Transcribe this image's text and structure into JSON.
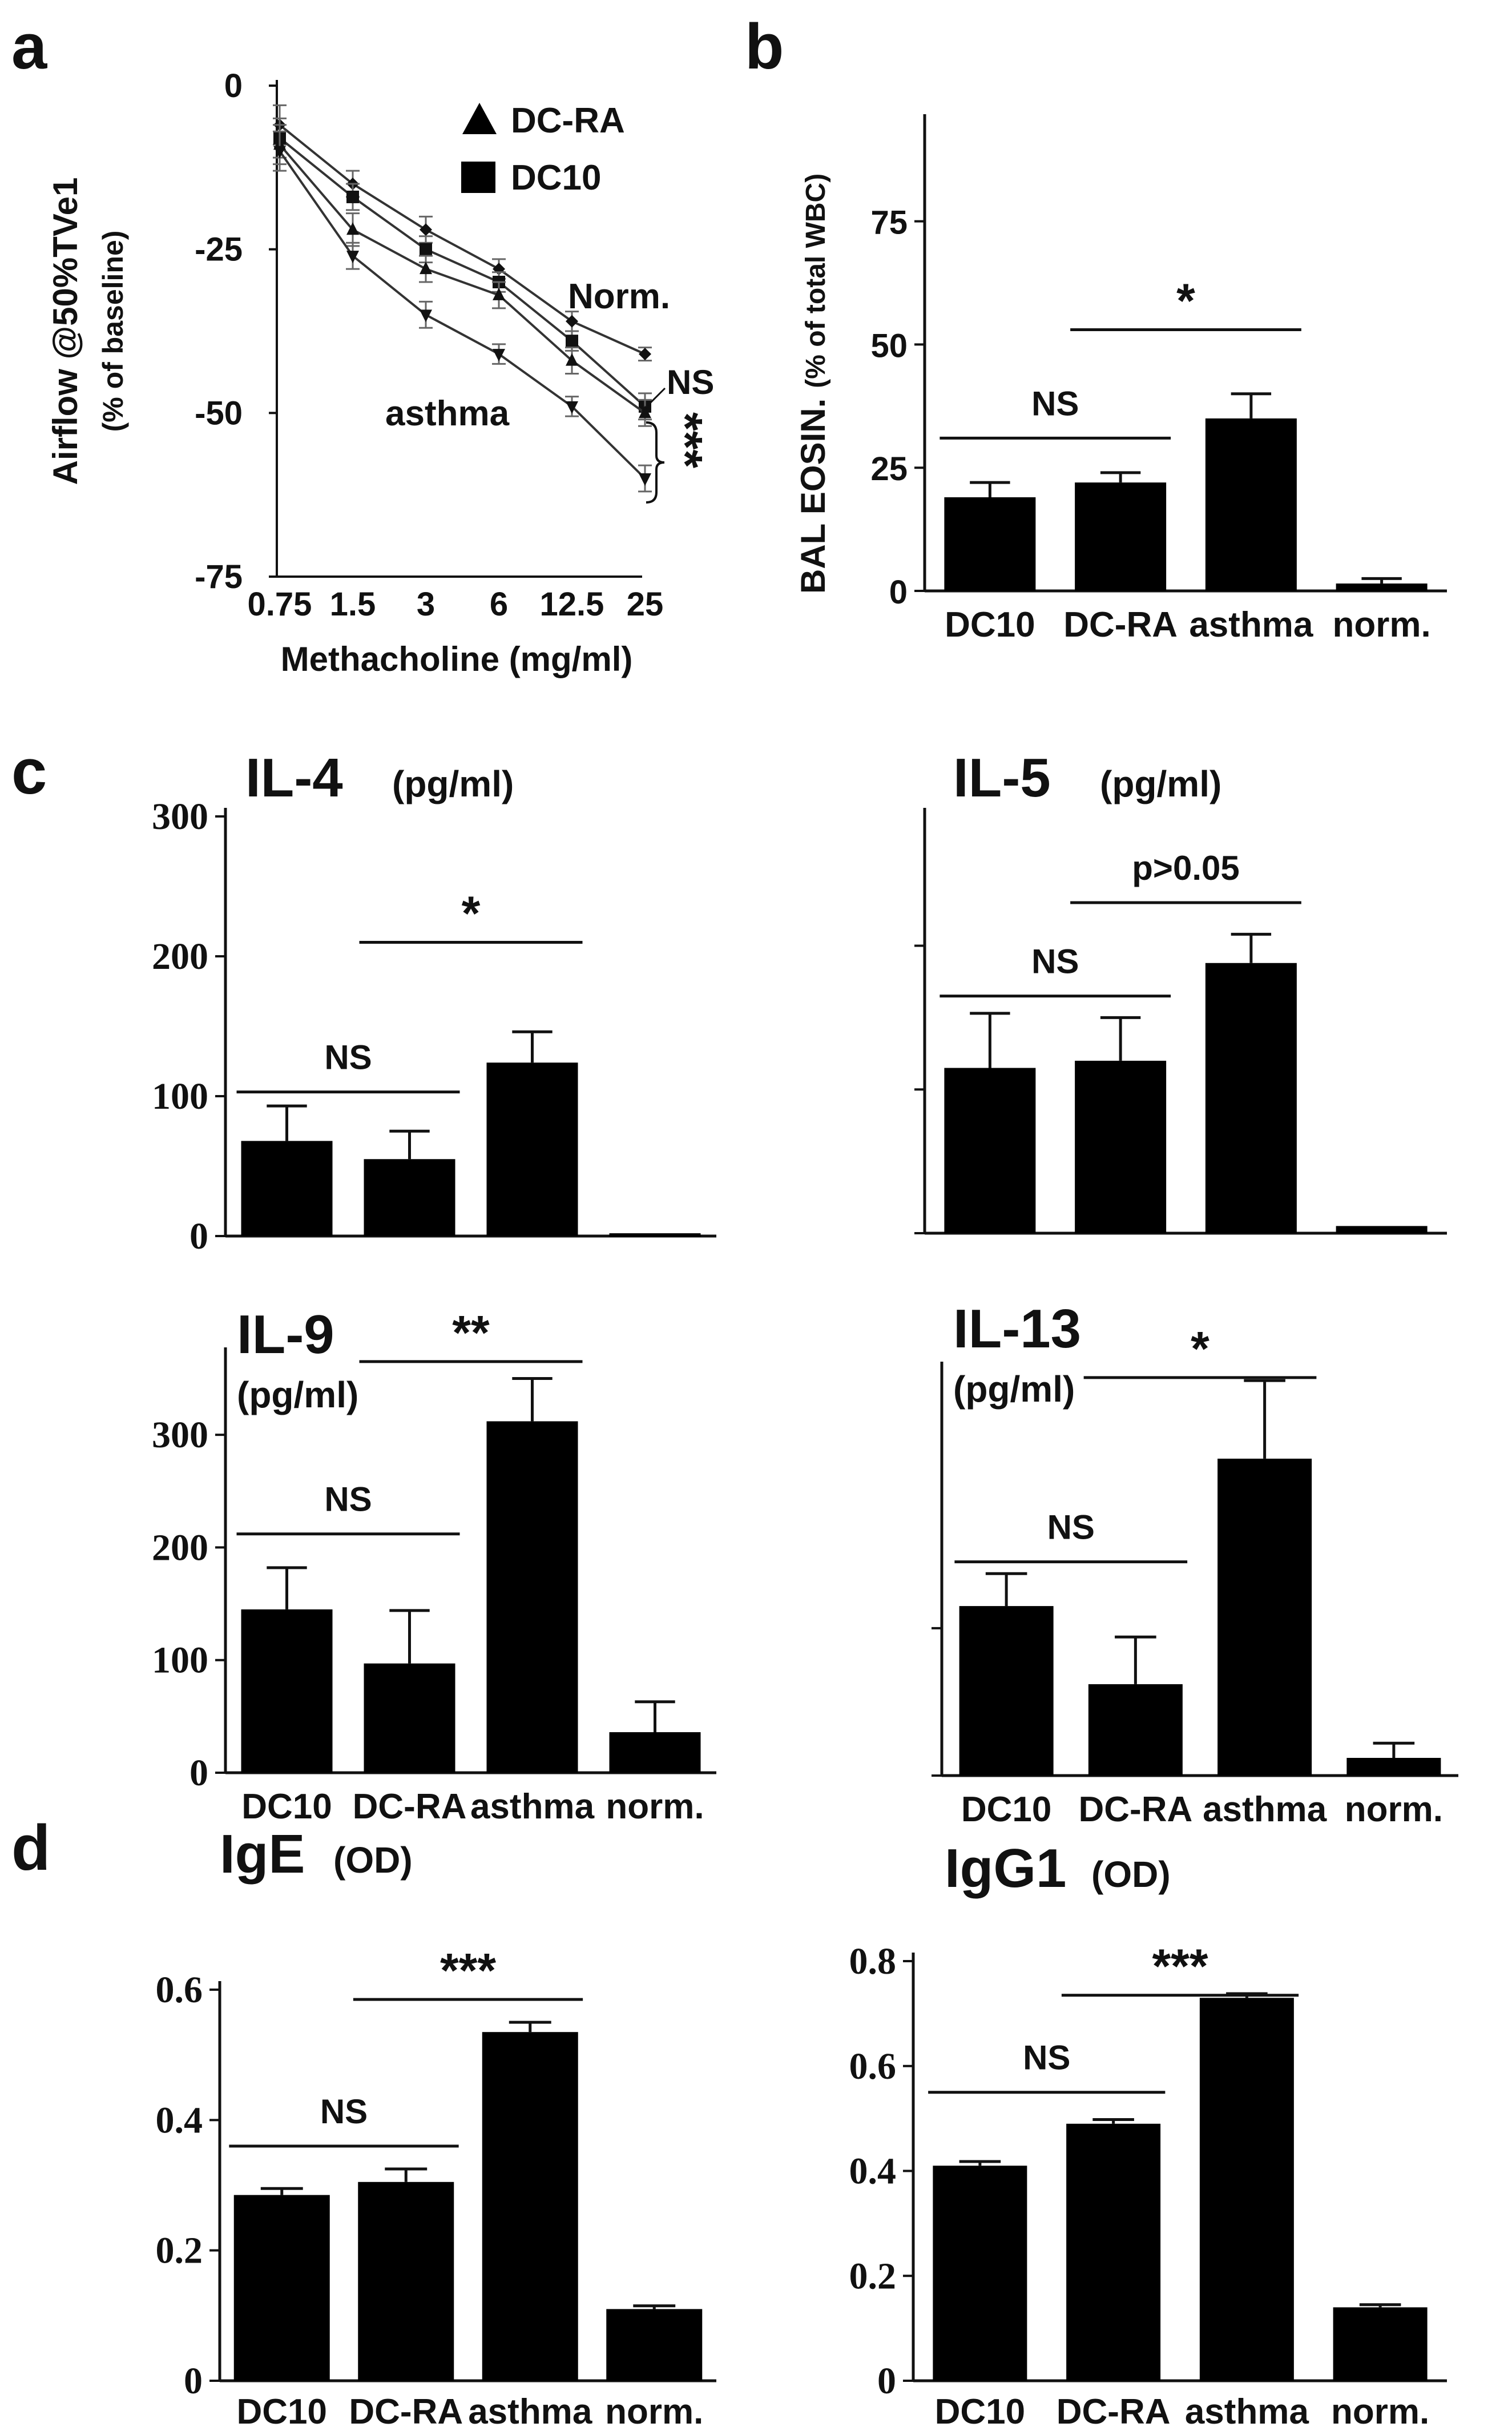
{
  "panel_labels": [
    "a",
    "b",
    "c",
    "d"
  ],
  "chart_data": [
    {
      "id": "a",
      "type": "line",
      "xlabel": "Methacholine (mg/ml)",
      "ylabel": "Airflow @50%TVe1",
      "ylabel2": "(% of baseline)",
      "categories": [
        "0.75",
        "1.5",
        "3",
        "6",
        "12.5",
        "25"
      ],
      "yticks": [
        "0",
        "-25",
        "-50",
        "-75"
      ],
      "ylim": [
        -75,
        0
      ],
      "legend": [
        {
          "marker": "triangle",
          "label": "DC-RA"
        },
        {
          "marker": "square",
          "label": "DC10"
        }
      ],
      "annotations": {
        "norm": "Norm.",
        "asthma": "asthma",
        "ns": "NS",
        "stars": "***"
      },
      "series": [
        {
          "marker": "diamond",
          "values": [
            -6,
            -15,
            -22,
            -28,
            -36,
            -41
          ],
          "errors": [
            3,
            2,
            2,
            1.5,
            1.5,
            1
          ]
        },
        {
          "marker": "square",
          "values": [
            -8,
            -17,
            -25,
            -30,
            -39,
            -49
          ],
          "errors": [
            3,
            2,
            2,
            1.5,
            1.5,
            2
          ]
        },
        {
          "marker": "triangle",
          "values": [
            -9,
            -22,
            -28,
            -32,
            -42,
            -50
          ],
          "errors": [
            3,
            2.5,
            2,
            2,
            2,
            2
          ]
        },
        {
          "marker": "down-triangle",
          "values": [
            -10,
            -26,
            -35,
            -41,
            -49,
            -60
          ],
          "errors": [
            3,
            2,
            2,
            1.5,
            1.5,
            2
          ]
        }
      ]
    },
    {
      "id": "b",
      "type": "bar",
      "ylabel": "BAL EOSIN.",
      "ylabel2": "(% of total WBC)",
      "categories": [
        "DC10",
        "DC-RA",
        "asthma",
        "norm."
      ],
      "values": [
        19,
        22,
        35,
        1.5
      ],
      "errors": [
        3,
        2,
        5,
        1
      ],
      "yticks": [
        "0",
        "25",
        "50",
        "75"
      ],
      "ylim": [
        0,
        95
      ],
      "sig": [
        {
          "from": 0,
          "to": 1,
          "label": "NS",
          "at": 31
        },
        {
          "from": 1,
          "to": 2,
          "label": "*",
          "at": 53
        }
      ]
    },
    {
      "id": "c-il4",
      "type": "bar",
      "title": "IL-4",
      "unit": "(pg/ml)",
      "categories": [
        "DC10",
        "DC-RA",
        "asthma",
        "norm."
      ],
      "values": [
        68,
        55,
        124,
        2
      ],
      "errors": [
        25,
        20,
        22,
        0
      ],
      "yticks": [
        "0",
        "100",
        "200",
        "300"
      ],
      "ylim": [
        0,
        300
      ],
      "sig": [
        {
          "from": 0,
          "to": 1,
          "label": "NS",
          "at": 103
        },
        {
          "from": 1,
          "to": 2,
          "label": "*",
          "at": 210
        }
      ]
    },
    {
      "id": "c-il5",
      "type": "bar",
      "title": "IL-5",
      "unit": "(pg/ml)",
      "categories": [
        "DC10",
        "DC-RA",
        "asthma",
        "norm."
      ],
      "values": [
        115,
        120,
        188,
        5
      ],
      "errors": [
        38,
        30,
        20,
        0
      ],
      "yticks": [
        "",
        "",
        ""
      ],
      "ylim": [
        0,
        290
      ],
      "sig": [
        {
          "from": 0,
          "to": 1,
          "label": "NS",
          "at": 165
        },
        {
          "from": 1,
          "to": 2,
          "label": "p>0.05",
          "at": 230
        }
      ]
    },
    {
      "id": "c-il9",
      "type": "bar",
      "title": "IL-9",
      "unit": "(pg/ml)",
      "categories": [
        "DC10",
        "DC-RA",
        "asthma",
        "norm."
      ],
      "values": [
        145,
        97,
        312,
        36
      ],
      "errors": [
        37,
        47,
        38,
        27
      ],
      "yticks": [
        "0",
        "100",
        "200",
        "300"
      ],
      "ylim": [
        0,
        370
      ],
      "sig": [
        {
          "from": 0,
          "to": 1,
          "label": "NS",
          "at": 212
        },
        {
          "from": 1,
          "to": 2,
          "label": "**",
          "at": 365
        }
      ]
    },
    {
      "id": "c-il13",
      "type": "bar",
      "title": "IL-13",
      "unit": "(pg/ml)",
      "categories": [
        "DC10",
        "DC-RA",
        "asthma",
        "norm."
      ],
      "values": [
        115,
        62,
        215,
        12
      ],
      "errors": [
        22,
        32,
        53,
        10
      ],
      "yticks": [
        "",
        ""
      ],
      "ylim": [
        0,
        275
      ],
      "sig": [
        {
          "from": 0,
          "to": 1,
          "label": "NS",
          "at": 145
        },
        {
          "from": 1,
          "to": 2,
          "label": "*",
          "at": 270
        }
      ]
    },
    {
      "id": "d-ige",
      "type": "bar",
      "title": "IgE",
      "unit": "(OD)",
      "categories": [
        "DC10",
        "DC-RA",
        "asthma",
        "norm."
      ],
      "values": [
        0.285,
        0.305,
        0.535,
        0.11
      ],
      "errors": [
        0.01,
        0.02,
        0.015,
        0.005
      ],
      "yticks": [
        "0",
        "0.2",
        "0.4",
        "0.6"
      ],
      "ylim": [
        0,
        0.6
      ],
      "sig": [
        {
          "from": 0,
          "to": 1,
          "label": "NS",
          "at": 0.36
        },
        {
          "from": 1,
          "to": 2,
          "label": "***",
          "at": 0.585
        }
      ]
    },
    {
      "id": "d-igg1",
      "type": "bar",
      "title": "IgG1",
      "unit": "(OD)",
      "categories": [
        "DC10",
        "DC-RA",
        "asthma",
        "norm."
      ],
      "values": [
        0.41,
        0.49,
        0.73,
        0.14
      ],
      "errors": [
        0.008,
        0.008,
        0.008,
        0.005
      ],
      "yticks": [
        "0",
        "0.2",
        "0.4",
        "0.6",
        "0.8"
      ],
      "ylim": [
        0,
        0.8
      ],
      "sig": [
        {
          "from": 0,
          "to": 1,
          "label": "NS",
          "at": 0.55
        },
        {
          "from": 1,
          "to": 2,
          "label": "***",
          "at": 0.735
        }
      ]
    }
  ]
}
